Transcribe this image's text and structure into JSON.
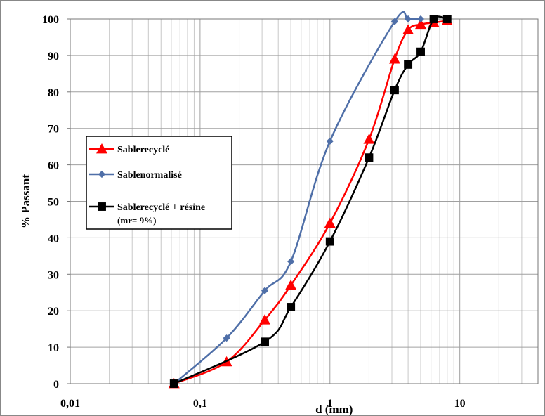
{
  "chart_data": {
    "type": "line",
    "xscale": "log",
    "xlabel": "d (mm)",
    "ylabel": "% Passant",
    "xlim": [
      0.01,
      40
    ],
    "ylim": [
      0,
      100
    ],
    "x_ticks": [
      {
        "v": 0.01,
        "label": "0,01"
      },
      {
        "v": 0.1,
        "label": "0,1"
      },
      {
        "v": 1,
        "label": "1"
      },
      {
        "v": 10,
        "label": "10"
      }
    ],
    "y_ticks": [
      {
        "v": 0,
        "label": "0"
      },
      {
        "v": 10,
        "label": "10"
      },
      {
        "v": 20,
        "label": "20"
      },
      {
        "v": 30,
        "label": "30"
      },
      {
        "v": 40,
        "label": "40"
      },
      {
        "v": 50,
        "label": "50"
      },
      {
        "v": 60,
        "label": "60"
      },
      {
        "v": 70,
        "label": "70"
      },
      {
        "v": 80,
        "label": "80"
      },
      {
        "v": 90,
        "label": "90"
      },
      {
        "v": 100,
        "label": "100"
      }
    ],
    "grid": true,
    "legend": "left-middle",
    "series": [
      {
        "name": "Sablerecyclé",
        "color": "#ff0000",
        "marker": "triangle",
        "points": [
          [
            0.063,
            0
          ],
          [
            0.16,
            6
          ],
          [
            0.315,
            17.5
          ],
          [
            0.5,
            27
          ],
          [
            1,
            44
          ],
          [
            2,
            67
          ],
          [
            3.15,
            89
          ],
          [
            4,
            97
          ],
          [
            5,
            98.5
          ],
          [
            6.3,
            99
          ],
          [
            8,
            99.5
          ]
        ]
      },
      {
        "name": "Sablenormalisé",
        "color": "#4f6fa8",
        "marker": "diamond",
        "points": [
          [
            0.063,
            0
          ],
          [
            0.16,
            12.5
          ],
          [
            0.315,
            25.5
          ],
          [
            0.5,
            33.5
          ],
          [
            1,
            66.5
          ],
          [
            3.15,
            99.3
          ],
          [
            4,
            100
          ],
          [
            5,
            100
          ]
        ]
      },
      {
        "name": "Sablerecyclé + résine",
        "subtitle": "(mr= 9%)",
        "color": "#000000",
        "marker": "square",
        "points": [
          [
            0.063,
            0
          ],
          [
            0.315,
            11.5
          ],
          [
            0.5,
            21
          ],
          [
            1,
            39
          ],
          [
            2,
            62
          ],
          [
            3.15,
            80.5
          ],
          [
            4,
            87.5
          ],
          [
            5,
            91
          ],
          [
            6.3,
            100
          ],
          [
            8,
            100
          ]
        ]
      }
    ]
  }
}
